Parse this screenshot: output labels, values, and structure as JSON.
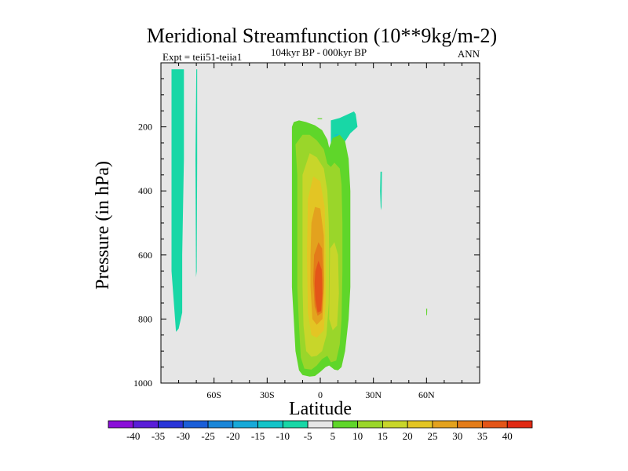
{
  "chart_data": {
    "type": "heatmap",
    "title": "Meridional Streamfunction (10**9kg/m-2)",
    "left_label": "Expt = teii51-teiia1",
    "subtitle": "104kyr BP - 000kyr BP",
    "right_label": "ANN",
    "xlabel": "Latitude",
    "ylabel": "Pressure (in hPa)",
    "xlim": [
      -90,
      90
    ],
    "ylim": [
      0,
      1000
    ],
    "y_inverted": true,
    "x_ticks": [
      {
        "value": -60,
        "label": "60S"
      },
      {
        "value": -30,
        "label": "30S"
      },
      {
        "value": 0,
        "label": "0"
      },
      {
        "value": 30,
        "label": "30N"
      },
      {
        "value": 60,
        "label": "60N"
      }
    ],
    "y_ticks": [
      {
        "value": 200,
        "label": "200"
      },
      {
        "value": 400,
        "label": "400"
      },
      {
        "value": 600,
        "label": "600"
      },
      {
        "value": 800,
        "label": "800"
      },
      {
        "value": 1000,
        "label": "1000"
      }
    ],
    "background_color": "#e6e6e6",
    "colorbar": {
      "labels": [
        "-40",
        "-35",
        "-30",
        "-25",
        "-20",
        "-15",
        "-10",
        "-5",
        "5",
        "10",
        "15",
        "20",
        "25",
        "30",
        "35",
        "40"
      ],
      "colors": [
        "#8a0fd8",
        "#5a1ed8",
        "#2a35d8",
        "#1a5ed8",
        "#1a86d8",
        "#17a9d8",
        "#14c4c8",
        "#18d7a6",
        "#e6e6e6",
        "#5fd62a",
        "#9ad62a",
        "#c8d62a",
        "#e3c524",
        "#e3a21e",
        "#e37c19",
        "#e35518",
        "#e02a14"
      ]
    },
    "contours": [
      {
        "name": "neg-5-strip-wide",
        "level": -5,
        "color": "#18d7a6",
        "points": [
          [
            -84,
            20
          ],
          [
            -77,
            20
          ],
          [
            -77,
            300
          ],
          [
            -78,
            600
          ],
          [
            -78,
            780
          ],
          [
            -80,
            830
          ],
          [
            -81.5,
            840
          ],
          [
            -82,
            800
          ],
          [
            -84,
            650
          ]
        ]
      },
      {
        "name": "neg-5-strip-thin",
        "level": -5,
        "color": "#18d7a6",
        "points": [
          [
            -70,
            20
          ],
          [
            -69.5,
            20
          ],
          [
            -69.5,
            300
          ],
          [
            -69.8,
            650
          ],
          [
            -70.2,
            670
          ],
          [
            -70.5,
            300
          ]
        ]
      },
      {
        "name": "neg-5-nh-upper",
        "level": -5,
        "color": "#18d7a6",
        "points": [
          [
            6,
            180
          ],
          [
            11,
            172
          ],
          [
            19,
            152
          ],
          [
            20,
            160
          ],
          [
            21,
            200
          ],
          [
            17,
            220
          ],
          [
            14,
            245
          ],
          [
            10,
            275
          ],
          [
            8,
            290
          ],
          [
            6,
            260
          ]
        ]
      },
      {
        "name": "neg-5-nh-spot",
        "level": -5,
        "color": "#18d7a6",
        "points": [
          [
            34,
            340
          ],
          [
            34.8,
            340
          ],
          [
            34.6,
            450
          ],
          [
            34.2,
            460
          ],
          [
            33.8,
            400
          ]
        ]
      },
      {
        "name": "neg-10-core",
        "level": -10,
        "color": "#14c4c8",
        "points": [
          [
            8,
            225
          ],
          [
            10,
            222
          ],
          [
            10.5,
            233
          ],
          [
            8.5,
            238
          ]
        ]
      },
      {
        "name": "pos-5-main",
        "level": 5,
        "color": "#5fd62a",
        "points": [
          [
            -15,
            185
          ],
          [
            -12,
            180
          ],
          [
            -8,
            185
          ],
          [
            -3,
            195
          ],
          [
            1,
            210
          ],
          [
            4,
            240
          ],
          [
            5,
            265
          ],
          [
            7,
            235
          ],
          [
            11,
            225
          ],
          [
            14,
            245
          ],
          [
            16,
            300
          ],
          [
            17,
            400
          ],
          [
            17,
            500
          ],
          [
            17,
            600
          ],
          [
            17,
            700
          ],
          [
            16,
            800
          ],
          [
            14,
            900
          ],
          [
            12,
            950
          ],
          [
            10,
            960
          ],
          [
            8,
            958
          ],
          [
            5,
            945
          ],
          [
            3,
            950
          ],
          [
            0,
            965
          ],
          [
            -3,
            978
          ],
          [
            -6,
            980
          ],
          [
            -10,
            975
          ],
          [
            -12,
            960
          ],
          [
            -14,
            900
          ],
          [
            -15,
            800
          ],
          [
            -16,
            700
          ],
          [
            -16,
            600
          ],
          [
            -16,
            500
          ],
          [
            -16,
            400
          ],
          [
            -16,
            300
          ],
          [
            -16,
            200
          ]
        ]
      },
      {
        "name": "pos-5-spot",
        "level": 5,
        "color": "#5fd62a",
        "points": [
          [
            -1.5,
            173
          ],
          [
            1,
            173
          ],
          [
            1,
            176
          ],
          [
            -1.5,
            176
          ]
        ]
      },
      {
        "name": "pos-5-sh-dot",
        "level": 5,
        "color": "#5fd62a",
        "points": [
          [
            59.8,
            768
          ],
          [
            60.4,
            768
          ],
          [
            60.3,
            788
          ],
          [
            59.9,
            788
          ]
        ]
      },
      {
        "name": "pos-10",
        "level": 10,
        "color": "#9ad62a",
        "points": [
          [
            -14,
            255
          ],
          [
            -10,
            225
          ],
          [
            -6,
            225
          ],
          [
            -2,
            242
          ],
          [
            2,
            270
          ],
          [
            4,
            315
          ],
          [
            6,
            325
          ],
          [
            8,
            312
          ],
          [
            11,
            330
          ],
          [
            12,
            380
          ],
          [
            12.5,
            500
          ],
          [
            12.5,
            650
          ],
          [
            12,
            800
          ],
          [
            11,
            880
          ],
          [
            9,
            930
          ],
          [
            6,
            935
          ],
          [
            4,
            915
          ],
          [
            1,
            925
          ],
          [
            -2,
            945
          ],
          [
            -5,
            958
          ],
          [
            -9,
            955
          ],
          [
            -11,
            920
          ],
          [
            -12,
            820
          ],
          [
            -13,
            700
          ],
          [
            -13,
            500
          ],
          [
            -13,
            350
          ]
        ]
      },
      {
        "name": "pos-15",
        "level": 15,
        "color": "#c8d62a",
        "points": [
          [
            -10,
            350
          ],
          [
            -6,
            282
          ],
          [
            -2,
            295
          ],
          [
            2,
            330
          ],
          [
            4,
            400
          ],
          [
            4.8,
            500
          ],
          [
            5,
            600
          ],
          [
            4.8,
            750
          ],
          [
            3.5,
            850
          ],
          [
            1,
            900
          ],
          [
            -2,
            915
          ],
          [
            -5,
            918
          ],
          [
            -8,
            900
          ],
          [
            -9.5,
            820
          ],
          [
            -10,
            700
          ],
          [
            -10,
            550
          ]
        ]
      },
      {
        "name": "pos-15-lobe",
        "level": 15,
        "color": "#c8d62a",
        "points": [
          [
            5.5,
            580
          ],
          [
            8,
            560
          ],
          [
            10,
            600
          ],
          [
            10.5,
            720
          ],
          [
            9.5,
            820
          ],
          [
            7,
            835
          ],
          [
            5,
            800
          ]
        ]
      },
      {
        "name": "pos-20",
        "level": 20,
        "color": "#e3c524",
        "points": [
          [
            -7,
            425
          ],
          [
            -4,
            355
          ],
          [
            0,
            370
          ],
          [
            2.5,
            450
          ],
          [
            3,
            600
          ],
          [
            3,
            750
          ],
          [
            2,
            835
          ],
          [
            -2,
            858
          ],
          [
            -5,
            850
          ],
          [
            -7,
            780
          ],
          [
            -7.5,
            600
          ]
        ]
      },
      {
        "name": "pos-25",
        "level": 25,
        "color": "#e3a21e",
        "points": [
          [
            -5,
            500
          ],
          [
            -3,
            450
          ],
          [
            0,
            455
          ],
          [
            2,
            540
          ],
          [
            2.2,
            700
          ],
          [
            1.2,
            800
          ],
          [
            -2,
            818
          ],
          [
            -4.5,
            800
          ],
          [
            -5.5,
            700
          ],
          [
            -5.5,
            600
          ]
        ]
      },
      {
        "name": "pos-30",
        "level": 30,
        "color": "#e37c19",
        "points": [
          [
            -3.5,
            600
          ],
          [
            -1,
            560
          ],
          [
            1,
            580
          ],
          [
            1.8,
            680
          ],
          [
            1,
            780
          ],
          [
            -1.5,
            790
          ],
          [
            -3.2,
            760
          ],
          [
            -4,
            680
          ]
        ]
      },
      {
        "name": "pos-35",
        "level": 35,
        "color": "#e35518",
        "points": [
          [
            -2.8,
            650
          ],
          [
            -1,
            618
          ],
          [
            0.8,
            645
          ],
          [
            1.2,
            720
          ],
          [
            0.5,
            775
          ],
          [
            -1.5,
            780
          ],
          [
            -2.8,
            740
          ],
          [
            -3.2,
            690
          ]
        ]
      }
    ]
  }
}
